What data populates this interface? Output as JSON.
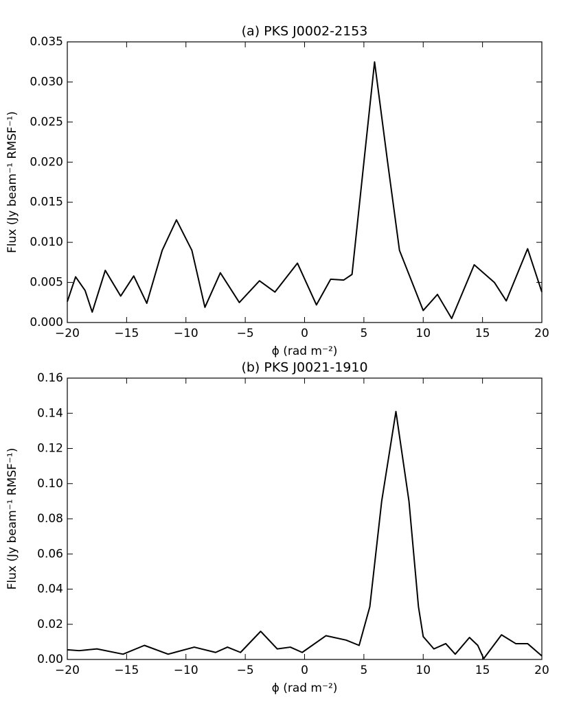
{
  "chart_data": [
    {
      "type": "line",
      "title": "(a) PKS J0002-2153",
      "xlabel": "ϕ (rad m⁻²)",
      "ylabel": "Flux (Jy beam⁻¹ RMSF⁻¹)",
      "color": "#000000",
      "x": [
        -20,
        -19.3,
        -18.5,
        -17.9,
        -16.8,
        -15.5,
        -14.4,
        -13.3,
        -12,
        -10.8,
        -9.5,
        -8.4,
        -7.1,
        -5.5,
        -3.8,
        -2.5,
        -0.6,
        1,
        2.2,
        3.3,
        4,
        5,
        5.9,
        7,
        8,
        10,
        11.2,
        12.4,
        14.3,
        16,
        17,
        18.8,
        20
      ],
      "values": [
        0.0026,
        0.0057,
        0.004,
        0.0013,
        0.0065,
        0.0033,
        0.0058,
        0.0024,
        0.009,
        0.0128,
        0.009,
        0.0019,
        0.0062,
        0.0025,
        0.0052,
        0.0038,
        0.0074,
        0.0022,
        0.0054,
        0.0053,
        0.006,
        0.02,
        0.0325,
        0.02,
        0.009,
        0.0015,
        0.0035,
        0.0005,
        0.0072,
        0.005,
        0.0027,
        0.0092,
        0.0038
      ],
      "xlim": [
        -20,
        20
      ],
      "ylim": [
        0,
        0.035
      ],
      "xticks": [
        {
          "value": -20,
          "label": "−20"
        },
        {
          "value": -15,
          "label": "−15"
        },
        {
          "value": -10,
          "label": "−10"
        },
        {
          "value": -5,
          "label": "−5"
        },
        0,
        5,
        10,
        15,
        20
      ],
      "yticks": [
        {
          "value": 0,
          "label": "0.000"
        },
        {
          "value": 0.005,
          "label": "0.005"
        },
        {
          "value": 0.01,
          "label": "0.010"
        },
        {
          "value": 0.015,
          "label": "0.015"
        },
        {
          "value": 0.02,
          "label": "0.020"
        },
        {
          "value": 0.025,
          "label": "0.025"
        },
        {
          "value": 0.03,
          "label": "0.030"
        },
        {
          "value": 0.035,
          "label": "0.035"
        }
      ]
    },
    {
      "type": "line",
      "title": "(b) PKS J0021-1910",
      "xlabel": "ϕ (rad m⁻²)",
      "ylabel": "Flux (Jy beam⁻¹ RMSF⁻¹)",
      "color": "#000000",
      "x": [
        -20,
        -19,
        -17.5,
        -15.3,
        -13.5,
        -11.5,
        -9.3,
        -7.5,
        -6.5,
        -5.4,
        -3.7,
        -2.3,
        -1.2,
        -0.2,
        1.8,
        3.5,
        4.6,
        5.5,
        6.5,
        7.7,
        8.8,
        9.6,
        10,
        10.9,
        11.9,
        12.7,
        13.9,
        14.6,
        15.1,
        16.6,
        17.8,
        18.8,
        20
      ],
      "values": [
        0.0055,
        0.005,
        0.006,
        0.003,
        0.008,
        0.003,
        0.007,
        0.004,
        0.007,
        0.004,
        0.016,
        0.006,
        0.007,
        0.004,
        0.0135,
        0.011,
        0.008,
        0.03,
        0.09,
        0.141,
        0.09,
        0.03,
        0.013,
        0.006,
        0.009,
        0.003,
        0.0125,
        0.008,
        0.0005,
        0.014,
        0.009,
        0.009,
        0.002
      ],
      "xlim": [
        -20,
        20
      ],
      "ylim": [
        0,
        0.16
      ],
      "xticks": [
        {
          "value": -20,
          "label": "−20"
        },
        {
          "value": -15,
          "label": "−15"
        },
        {
          "value": -10,
          "label": "−10"
        },
        {
          "value": -5,
          "label": "−5"
        },
        0,
        5,
        10,
        15,
        20
      ],
      "yticks": [
        {
          "value": 0,
          "label": "0.00"
        },
        {
          "value": 0.02,
          "label": "0.02"
        },
        {
          "value": 0.04,
          "label": "0.04"
        },
        {
          "value": 0.06,
          "label": "0.06"
        },
        {
          "value": 0.08,
          "label": "0.08"
        },
        {
          "value": 0.1,
          "label": "0.10"
        },
        {
          "value": 0.12,
          "label": "0.12"
        },
        {
          "value": 0.14,
          "label": "0.14"
        },
        {
          "value": 0.16,
          "label": "0.16"
        }
      ]
    }
  ]
}
